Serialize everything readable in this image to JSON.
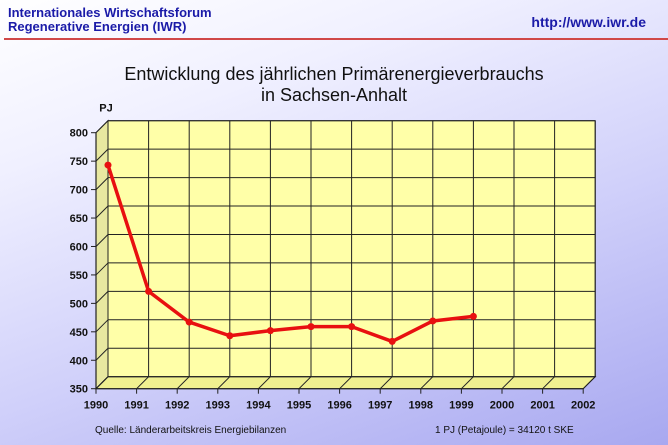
{
  "header": {
    "org_line1": "Internationales Wirtschaftsforum",
    "org_line2": "Regenerative Energien (IWR)",
    "url": "http://www.iwr.de"
  },
  "colors": {
    "line": "#e81010",
    "plot_bg": "#ffffa8",
    "header_text": "#1a1aa8",
    "rule": "#d04848"
  },
  "chart_data": {
    "type": "line",
    "title_line1": "Entwicklung des jährlichen Primärenergieverbrauchs",
    "title_line2": "in Sachsen-Anhalt",
    "ylabel": "PJ",
    "xlabel": "",
    "ylim": [
      350,
      800
    ],
    "yticks": [
      "350",
      "400",
      "450",
      "500",
      "550",
      "600",
      "650",
      "700",
      "750",
      "800"
    ],
    "categories": [
      "1990",
      "1991",
      "1992",
      "1993",
      "1994",
      "1995",
      "1996",
      "1997",
      "1998",
      "1999",
      "2000",
      "2001",
      "2002"
    ],
    "series": [
      {
        "name": "Primärenergieverbrauch",
        "values": [
          722,
          500,
          446,
          422,
          431,
          438,
          438,
          412,
          448,
          456,
          null,
          null,
          null
        ]
      }
    ],
    "grid": true,
    "legend": "none"
  },
  "footer": {
    "source": "Quelle: Länderarbeitskreis Energiebilanzen",
    "note": "1 PJ (Petajoule) = 34120 t SKE"
  }
}
